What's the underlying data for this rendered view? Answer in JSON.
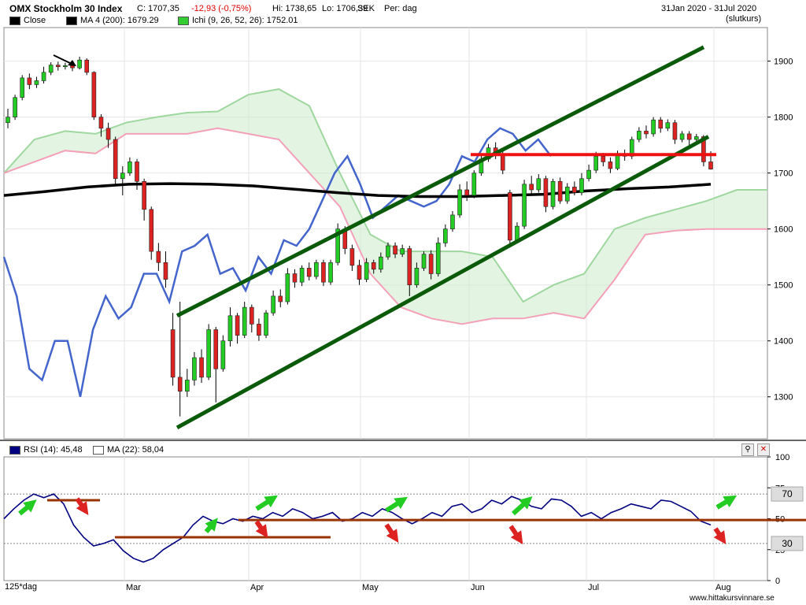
{
  "header": {
    "title": "OMX Stockholm 30 Index",
    "close": "C: 1707,35",
    "change": "-12,93 (-0,75%)",
    "high": "Hi: 1738,65",
    "low": "Lo: 1706,39",
    "currency": "SEK",
    "period": "Per: dag",
    "date_range": "31Jan 2020 - 31Jul 2020",
    "price_type": "(slutkurs)"
  },
  "legend_main": [
    {
      "label": "Close",
      "color": "#000000"
    },
    {
      "label": "MA 4 (200): 1679.29",
      "color": "#000000"
    },
    {
      "label": "Ichi (9, 26, 52, 26): 1752.01",
      "color": "#33cc33"
    }
  ],
  "legend_rsi": [
    {
      "label": "RSI (14): 45,48",
      "color": "#000080"
    },
    {
      "label": "MA (22): 58,04",
      "color": "#ffffff"
    }
  ],
  "footer": {
    "interval": "125*dag",
    "watermark": "www.hittakursvinnare.se"
  },
  "icons": {
    "zoom": "magnifier-icon",
    "close": "close-icon"
  },
  "colors": {
    "up": "#22cc22",
    "down": "#dd2222",
    "rsi": "#000080",
    "cci": "#4466cc",
    "kumo_green": "#ccebcc",
    "kumo_pink": "#ffd6e0",
    "trend": "#0a5a0a",
    "resistance": "#ee1111",
    "ma200": "#000000",
    "level": "#993300"
  },
  "chart_data": [
    {
      "type": "candlestick",
      "title": "OMX Stockholm 30 Index",
      "x_ticks": [
        "Mar",
        "Apr",
        "May",
        "Jun",
        "Jul",
        "Aug"
      ],
      "y_ticks": [
        1300,
        1400,
        1500,
        1600,
        1700,
        1800,
        1900
      ],
      "ylim": [
        1225,
        1960
      ],
      "candles": [
        {
          "o": 1790,
          "c": 1800,
          "h": 1815,
          "l": 1780
        },
        {
          "o": 1800,
          "c": 1835,
          "h": 1840,
          "l": 1795
        },
        {
          "o": 1835,
          "c": 1870,
          "h": 1875,
          "l": 1830
        },
        {
          "o": 1870,
          "c": 1858,
          "h": 1878,
          "l": 1850
        },
        {
          "o": 1858,
          "c": 1865,
          "h": 1872,
          "l": 1852
        },
        {
          "o": 1865,
          "c": 1880,
          "h": 1890,
          "l": 1860
        },
        {
          "o": 1880,
          "c": 1893,
          "h": 1898,
          "l": 1875
        },
        {
          "o": 1893,
          "c": 1890,
          "h": 1899,
          "l": 1883
        },
        {
          "o": 1890,
          "c": 1892,
          "h": 1897,
          "l": 1885
        },
        {
          "o": 1892,
          "c": 1888,
          "h": 1898,
          "l": 1882
        },
        {
          "o": 1888,
          "c": 1902,
          "h": 1908,
          "l": 1885
        },
        {
          "o": 1902,
          "c": 1880,
          "h": 1905,
          "l": 1875
        },
        {
          "o": 1880,
          "c": 1800,
          "h": 1882,
          "l": 1795
        },
        {
          "o": 1800,
          "c": 1780,
          "h": 1805,
          "l": 1765
        },
        {
          "o": 1780,
          "c": 1760,
          "h": 1790,
          "l": 1745
        },
        {
          "o": 1760,
          "c": 1690,
          "h": 1765,
          "l": 1680
        },
        {
          "o": 1690,
          "c": 1700,
          "h": 1712,
          "l": 1660
        },
        {
          "o": 1700,
          "c": 1720,
          "h": 1728,
          "l": 1695
        },
        {
          "o": 1720,
          "c": 1685,
          "h": 1725,
          "l": 1670
        },
        {
          "o": 1685,
          "c": 1635,
          "h": 1690,
          "l": 1615
        },
        {
          "o": 1635,
          "c": 1560,
          "h": 1640,
          "l": 1545
        },
        {
          "o": 1560,
          "c": 1540,
          "h": 1575,
          "l": 1525
        },
        {
          "o": 1540,
          "c": 1510,
          "h": 1560,
          "l": 1495
        },
        {
          "o": 1420,
          "c": 1335,
          "h": 1450,
          "l": 1320
        },
        {
          "o": 1335,
          "c": 1310,
          "h": 1470,
          "l": 1265
        },
        {
          "o": 1310,
          "c": 1330,
          "h": 1350,
          "l": 1300
        },
        {
          "o": 1330,
          "c": 1370,
          "h": 1380,
          "l": 1320
        },
        {
          "o": 1370,
          "c": 1335,
          "h": 1385,
          "l": 1325
        },
        {
          "o": 1335,
          "c": 1420,
          "h": 1430,
          "l": 1330
        },
        {
          "o": 1420,
          "c": 1350,
          "h": 1425,
          "l": 1290
        },
        {
          "o": 1350,
          "c": 1400,
          "h": 1410,
          "l": 1345
        },
        {
          "o": 1400,
          "c": 1445,
          "h": 1460,
          "l": 1390
        },
        {
          "o": 1445,
          "c": 1410,
          "h": 1450,
          "l": 1395
        },
        {
          "o": 1410,
          "c": 1460,
          "h": 1470,
          "l": 1405
        },
        {
          "o": 1460,
          "c": 1430,
          "h": 1465,
          "l": 1415
        },
        {
          "o": 1430,
          "c": 1410,
          "h": 1440,
          "l": 1400
        },
        {
          "o": 1410,
          "c": 1450,
          "h": 1455,
          "l": 1405
        },
        {
          "o": 1450,
          "c": 1480,
          "h": 1490,
          "l": 1445
        },
        {
          "o": 1480,
          "c": 1470,
          "h": 1492,
          "l": 1460
        },
        {
          "o": 1470,
          "c": 1520,
          "h": 1530,
          "l": 1465
        },
        {
          "o": 1520,
          "c": 1505,
          "h": 1528,
          "l": 1495
        },
        {
          "o": 1505,
          "c": 1530,
          "h": 1535,
          "l": 1498
        },
        {
          "o": 1530,
          "c": 1515,
          "h": 1540,
          "l": 1508
        },
        {
          "o": 1515,
          "c": 1540,
          "h": 1545,
          "l": 1510
        },
        {
          "o": 1540,
          "c": 1505,
          "h": 1545,
          "l": 1498
        },
        {
          "o": 1505,
          "c": 1540,
          "h": 1545,
          "l": 1500
        },
        {
          "o": 1540,
          "c": 1600,
          "h": 1610,
          "l": 1535
        },
        {
          "o": 1600,
          "c": 1565,
          "h": 1605,
          "l": 1555
        },
        {
          "o": 1565,
          "c": 1535,
          "h": 1572,
          "l": 1525
        },
        {
          "o": 1535,
          "c": 1510,
          "h": 1545,
          "l": 1500
        },
        {
          "o": 1510,
          "c": 1540,
          "h": 1548,
          "l": 1505
        },
        {
          "o": 1540,
          "c": 1528,
          "h": 1545,
          "l": 1520
        },
        {
          "o": 1528,
          "c": 1550,
          "h": 1558,
          "l": 1522
        },
        {
          "o": 1550,
          "c": 1570,
          "h": 1576,
          "l": 1545
        },
        {
          "o": 1570,
          "c": 1555,
          "h": 1576,
          "l": 1548
        },
        {
          "o": 1555,
          "c": 1565,
          "h": 1572,
          "l": 1550
        },
        {
          "o": 1565,
          "c": 1500,
          "h": 1570,
          "l": 1480
        },
        {
          "o": 1500,
          "c": 1530,
          "h": 1540,
          "l": 1495
        },
        {
          "o": 1530,
          "c": 1555,
          "h": 1560,
          "l": 1525
        },
        {
          "o": 1555,
          "c": 1520,
          "h": 1562,
          "l": 1510
        },
        {
          "o": 1520,
          "c": 1575,
          "h": 1585,
          "l": 1515
        },
        {
          "o": 1575,
          "c": 1600,
          "h": 1608,
          "l": 1568
        },
        {
          "o": 1600,
          "c": 1625,
          "h": 1632,
          "l": 1595
        },
        {
          "o": 1625,
          "c": 1670,
          "h": 1680,
          "l": 1620
        },
        {
          "o": 1670,
          "c": 1660,
          "h": 1685,
          "l": 1650
        },
        {
          "o": 1660,
          "c": 1700,
          "h": 1705,
          "l": 1655
        },
        {
          "o": 1700,
          "c": 1725,
          "h": 1735,
          "l": 1695
        },
        {
          "o": 1725,
          "c": 1745,
          "h": 1752,
          "l": 1720
        },
        {
          "o": 1745,
          "c": 1735,
          "h": 1755,
          "l": 1725
        },
        {
          "o": 1735,
          "c": 1705,
          "h": 1740,
          "l": 1698
        },
        {
          "o": 1665,
          "c": 1580,
          "h": 1670,
          "l": 1570
        },
        {
          "o": 1580,
          "c": 1605,
          "h": 1612,
          "l": 1575
        },
        {
          "o": 1605,
          "c": 1680,
          "h": 1688,
          "l": 1600
        },
        {
          "o": 1680,
          "c": 1670,
          "h": 1695,
          "l": 1660
        },
        {
          "o": 1670,
          "c": 1690,
          "h": 1698,
          "l": 1665
        },
        {
          "o": 1690,
          "c": 1640,
          "h": 1695,
          "l": 1630
        },
        {
          "o": 1640,
          "c": 1685,
          "h": 1690,
          "l": 1635
        },
        {
          "o": 1685,
          "c": 1650,
          "h": 1692,
          "l": 1645
        },
        {
          "o": 1650,
          "c": 1675,
          "h": 1682,
          "l": 1645
        },
        {
          "o": 1675,
          "c": 1665,
          "h": 1685,
          "l": 1660
        },
        {
          "o": 1665,
          "c": 1690,
          "h": 1700,
          "l": 1660
        },
        {
          "o": 1690,
          "c": 1705,
          "h": 1715,
          "l": 1685
        },
        {
          "o": 1705,
          "c": 1730,
          "h": 1738,
          "l": 1700
        },
        {
          "o": 1730,
          "c": 1720,
          "h": 1736,
          "l": 1712
        },
        {
          "o": 1720,
          "c": 1708,
          "h": 1728,
          "l": 1700
        },
        {
          "o": 1708,
          "c": 1735,
          "h": 1740,
          "l": 1705
        },
        {
          "o": 1735,
          "c": 1730,
          "h": 1742,
          "l": 1722
        },
        {
          "o": 1730,
          "c": 1760,
          "h": 1765,
          "l": 1725
        },
        {
          "o": 1760,
          "c": 1775,
          "h": 1782,
          "l": 1755
        },
        {
          "o": 1775,
          "c": 1770,
          "h": 1785,
          "l": 1762
        },
        {
          "o": 1770,
          "c": 1795,
          "h": 1800,
          "l": 1765
        },
        {
          "o": 1795,
          "c": 1780,
          "h": 1800,
          "l": 1772
        },
        {
          "o": 1780,
          "c": 1790,
          "h": 1796,
          "l": 1775
        },
        {
          "o": 1790,
          "c": 1760,
          "h": 1795,
          "l": 1752
        },
        {
          "o": 1760,
          "c": 1770,
          "h": 1775,
          "l": 1755
        },
        {
          "o": 1770,
          "c": 1760,
          "h": 1775,
          "l": 1750
        },
        {
          "o": 1760,
          "c": 1765,
          "h": 1770,
          "l": 1750
        },
        {
          "o": 1765,
          "c": 1720,
          "h": 1768,
          "l": 1712
        },
        {
          "o": 1720,
          "c": 1707,
          "h": 1739,
          "l": 1706
        }
      ],
      "ma200": [
        1660,
        1667,
        1675,
        1680,
        1681,
        1680,
        1677,
        1671,
        1665,
        1660,
        1658,
        1658,
        1660,
        1662,
        1668,
        1672,
        1675,
        1680
      ],
      "kumo_top": [
        1700,
        1760,
        1775,
        1770,
        1790,
        1800,
        1808,
        1810,
        1840,
        1850,
        1820,
        1700,
        1590,
        1560,
        1560,
        1560,
        1550,
        1470,
        1500,
        1520,
        1600,
        1620,
        1635,
        1650,
        1670,
        1670
      ],
      "kumo_bottom": [
        1700,
        1720,
        1740,
        1735,
        1770,
        1770,
        1770,
        1780,
        1770,
        1760,
        1700,
        1640,
        1520,
        1460,
        1440,
        1430,
        1440,
        1440,
        1450,
        1440,
        1510,
        1590,
        1597,
        1600,
        1600,
        1600
      ],
      "cci_line": [
        1550,
        1480,
        1350,
        1330,
        1400,
        1400,
        1300,
        1420,
        1480,
        1440,
        1460,
        1520,
        1520,
        1470,
        1560,
        1570,
        1590,
        1520,
        1530,
        1490,
        1550,
        1520,
        1580,
        1570,
        1600,
        1650,
        1700,
        1730,
        1680,
        1620,
        1640,
        1660,
        1650,
        1640,
        1650,
        1680,
        1730,
        1720,
        1760,
        1780,
        1770,
        1740,
        1760,
        1730
      ],
      "trend_upper": [
        [
          1445,
          1480
        ],
        [
          1925,
          1925
        ]
      ],
      "trend_lower": [
        [
          1245,
          1260
        ],
        [
          1680,
          1765
        ]
      ],
      "resistance": 1733
    },
    {
      "type": "line",
      "title": "RSI",
      "series": [
        {
          "name": "RSI (14): 45,48",
          "values": [
            50,
            58,
            65,
            70,
            67,
            70,
            62,
            45,
            35,
            28,
            30,
            33,
            24,
            18,
            15,
            18,
            25,
            30,
            35,
            45,
            52,
            48,
            46,
            50,
            48,
            52,
            50,
            55,
            52,
            58,
            55,
            50,
            52,
            55,
            48,
            50,
            55,
            52,
            58,
            55,
            50,
            46,
            50,
            55,
            52,
            60,
            62,
            55,
            58,
            65,
            62,
            68,
            65,
            60,
            58,
            66,
            65,
            60,
            52,
            55,
            50,
            55,
            58,
            62,
            60,
            58,
            65,
            64,
            60,
            56,
            48,
            45
          ]
        },
        {
          "name": "MA (22): 58,04",
          "values": []
        }
      ],
      "y_ticks": [
        0,
        25,
        50,
        75,
        100
      ],
      "ylim": [
        0,
        100
      ],
      "levels": [
        70,
        30
      ]
    }
  ]
}
